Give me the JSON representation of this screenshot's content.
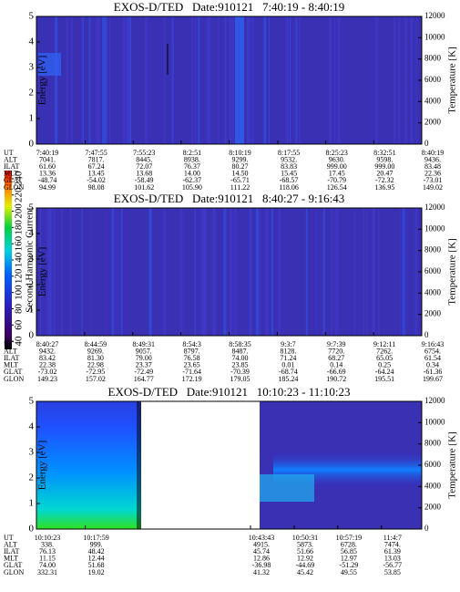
{
  "chart_data": [
    {
      "type": "heatmap",
      "title": "EXOS-D/TED   Date:910121   7:40:19 - 8:40:19",
      "ylabel": "Energy [eV]",
      "ylim": [
        0,
        5
      ],
      "yticks": [
        0,
        1,
        2,
        3,
        4,
        5
      ],
      "y2label": "Temperature [K]",
      "y2lim": [
        0,
        12000
      ],
      "y2ticks": [
        0,
        2000,
        4000,
        6000,
        8000,
        10000,
        12000
      ],
      "table": {
        "labels": [
          "UT",
          "ALT",
          "ILAT",
          "MLT",
          "GLAT",
          "GLON"
        ],
        "rows": [
          [
            "7:40:19",
            "7:47:55",
            "7:55:23",
            "8:2:51",
            "8:10:19",
            "8:17:55",
            "8:25:23",
            "8:32:51",
            "8:40:19"
          ],
          [
            "7041.",
            "7817.",
            "8445.",
            "8938.",
            "9299.",
            "9532.",
            "9630.",
            "9598.",
            "9436."
          ],
          [
            "61.60",
            "67.24",
            "72.07",
            "76.37",
            "80.27",
            "83.83",
            "999.00",
            "999.00",
            "83.48"
          ],
          [
            "13.36",
            "13.45",
            "13.68",
            "14.00",
            "14.50",
            "15.45",
            "17.45",
            "20.47",
            "22.36"
          ],
          [
            "-48.74",
            "-54.02",
            "-58.49",
            "-62.37",
            "-65.71",
            "-68.57",
            "-70.79",
            "-72.32",
            "-73.01"
          ],
          [
            "94.99",
            "98.08",
            "101.62",
            "105.90",
            "111.22",
            "118.06",
            "126.54",
            "136.95",
            "149.02"
          ]
        ]
      }
    },
    {
      "type": "heatmap",
      "title": "EXOS-D/TED   Date:910121   8:40:27 - 9:16:43",
      "ylabel": "Energy [eV]",
      "ylim": [
        0,
        5
      ],
      "yticks": [
        0,
        1,
        2,
        3,
        4,
        5
      ],
      "y2label": "Temperature [K]",
      "y2lim": [
        0,
        12000
      ],
      "y2ticks": [
        0,
        2000,
        4000,
        6000,
        8000,
        10000,
        12000
      ],
      "table": {
        "labels": [
          "UT",
          "ALT",
          "ILAT",
          "MLT",
          "GLAT",
          "GLON"
        ],
        "rows": [
          [
            "8:40:27",
            "8:44:59",
            "8:49:31",
            "8:54:3",
            "8:58:35",
            "9:3:7",
            "9:7:39",
            "9:12:11",
            "9:16:43"
          ],
          [
            "9432.",
            "9269.",
            "9057.",
            "8797.",
            "8487.",
            "8128.",
            "7720.",
            "7262.",
            "6754."
          ],
          [
            "83.42",
            "81.30",
            "79.00",
            "76.58",
            "74.00",
            "71.24",
            "68.27",
            "65.05",
            "61.54"
          ],
          [
            "22.38",
            "22.98",
            "23.37",
            "23.65",
            "23.85",
            "0.01",
            "0.14",
            "0.25",
            "0.34"
          ],
          [
            "-73.02",
            "-72.95",
            "-72.49",
            "-71.64",
            "-70.39",
            "-68.74",
            "-66.69",
            "-64.24",
            "-61.36"
          ],
          [
            "149.23",
            "157.02",
            "164.77",
            "172.19",
            "179.05",
            "185.24",
            "190.72",
            "195.51",
            "199.67"
          ]
        ]
      }
    },
    {
      "type": "heatmap",
      "title": "EXOS-D/TED   Date:910121   10:10:23 - 11:10:23",
      "ylabel": "Energy [eV]",
      "ylim": [
        0,
        5
      ],
      "yticks": [
        0,
        1,
        2,
        3,
        4,
        5
      ],
      "y2label": "Temperature [K]",
      "y2lim": [
        0,
        12000
      ],
      "y2ticks": [
        0,
        2000,
        4000,
        6000,
        8000,
        10000,
        12000
      ],
      "table": {
        "labels": [
          "UT",
          "ALT",
          "ILAT",
          "MLT",
          "GLAT",
          "GLON"
        ],
        "rows": [
          [
            "10:10:23",
            "10:17:59",
            "10:43:43",
            "10:50:31",
            "10:57:19",
            "11:4:7"
          ],
          [
            "338.",
            "999.",
            "4915.",
            "5873.",
            "6728.",
            "7474."
          ],
          [
            "76.13",
            "48.42",
            "45.74",
            "51.66",
            "56.85",
            "61.39"
          ],
          [
            "11.15",
            "12.44",
            "12.86",
            "12.92",
            "12.97",
            "13.03"
          ],
          [
            "74.00",
            "51.68",
            "-36.98",
            "-44.69",
            "-51.29",
            "-56.77"
          ],
          [
            "332.31",
            "19.02",
            "41.32",
            "45.42",
            "49.55",
            "53.85"
          ]
        ]
      }
    }
  ],
  "colorbar": {
    "label": "Second Harmonic Current",
    "lim": [
      30,
      250
    ],
    "ticks": [
      40,
      60,
      80,
      100,
      120,
      140,
      160,
      180,
      200,
      220,
      240
    ]
  }
}
